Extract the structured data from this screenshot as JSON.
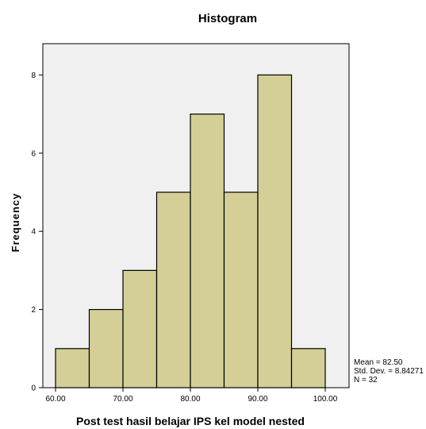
{
  "chart_data": {
    "type": "bar",
    "title": "Histogram",
    "xlabel": "Post test hasil belajar IPS kel model nested",
    "ylabel": "Frequency",
    "bins": [
      {
        "from": 60,
        "to": 65,
        "count": 1
      },
      {
        "from": 65,
        "to": 70,
        "count": 2
      },
      {
        "from": 70,
        "to": 75,
        "count": 3
      },
      {
        "from": 75,
        "to": 80,
        "count": 5
      },
      {
        "from": 80,
        "to": 85,
        "count": 7
      },
      {
        "from": 85,
        "to": 90,
        "count": 5
      },
      {
        "from": 90,
        "to": 95,
        "count": 8
      },
      {
        "from": 95,
        "to": 100,
        "count": 1
      }
    ],
    "xlim": [
      60,
      100
    ],
    "ylim": [
      0,
      8.8
    ],
    "x_ticks": [
      "60.00",
      "70.00",
      "80.00",
      "90.00",
      "100.00"
    ],
    "x_tick_values": [
      60,
      70,
      80,
      90,
      100
    ],
    "y_ticks": [
      "0",
      "2",
      "4",
      "6",
      "8"
    ],
    "y_tick_values": [
      0,
      2,
      4,
      6,
      8
    ],
    "grid": false,
    "legend": "right",
    "stats": [
      "Mean = 82.50",
      "Std. Dev. = 8.84271",
      "N = 32"
    ],
    "colors": {
      "bar_fill": "#d4cf96",
      "bar_stroke": "#000000",
      "plot_bg": "#f0f0f0"
    }
  }
}
